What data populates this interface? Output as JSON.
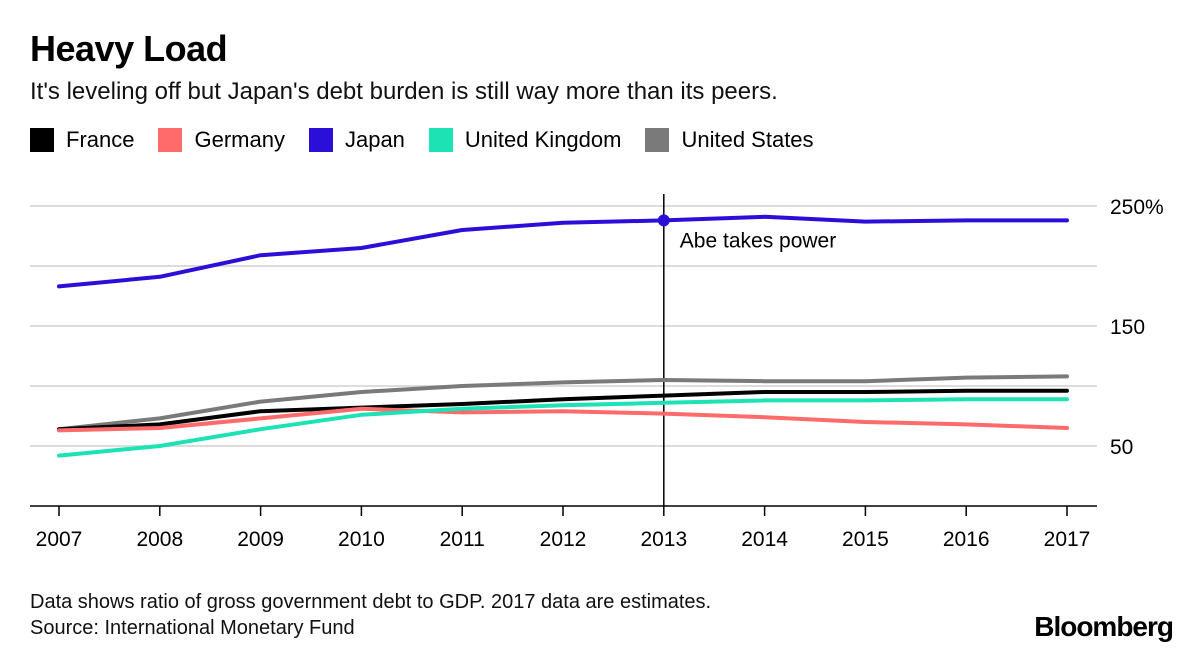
{
  "header": {
    "title": "Heavy Load",
    "subtitle": "It's leveling off but Japan's debt burden is still way more than its peers."
  },
  "footer": {
    "note": "Data shows ratio of gross government debt to GDP. 2017 data are estimates.",
    "source": "Source: International Monetary Fund",
    "logo": "Bloomberg"
  },
  "chart_data": {
    "type": "line",
    "title": "Heavy Load",
    "subtitle": "It's leveling off but Japan's debt burden is still way more than its peers.",
    "x": [
      "2007",
      "2008",
      "2009",
      "2010",
      "2011",
      "2012",
      "2013",
      "2014",
      "2015",
      "2016",
      "2017"
    ],
    "ylim": [
      0,
      250
    ],
    "yticks": [
      50,
      100,
      150,
      200,
      250
    ],
    "ytick_labels": [
      "50",
      "",
      "150",
      "",
      "250%"
    ],
    "grid": true,
    "legend_position": "top-left",
    "series": [
      {
        "name": "France",
        "color": "#000000",
        "values": [
          64,
          68,
          79,
          82,
          85,
          89,
          92,
          95,
          95,
          96,
          96
        ]
      },
      {
        "name": "Germany",
        "color": "#ff6b6b",
        "values": [
          63,
          65,
          73,
          81,
          78,
          79,
          77,
          74,
          70,
          68,
          65
        ]
      },
      {
        "name": "Japan",
        "color": "#2b0fd9",
        "values": [
          183,
          191,
          209,
          215,
          230,
          236,
          238,
          241,
          237,
          238,
          238
        ]
      },
      {
        "name": "United Kingdom",
        "color": "#1de2b3",
        "values": [
          42,
          50,
          64,
          76,
          81,
          84,
          86,
          88,
          88,
          89,
          89
        ]
      },
      {
        "name": "United States",
        "color": "#7a7a7a",
        "values": [
          64,
          73,
          87,
          95,
          100,
          103,
          105,
          104,
          104,
          107,
          108
        ]
      }
    ],
    "annotations": [
      {
        "x": "2013",
        "y": 238,
        "series": "Japan",
        "text": "Abe takes power"
      }
    ]
  }
}
